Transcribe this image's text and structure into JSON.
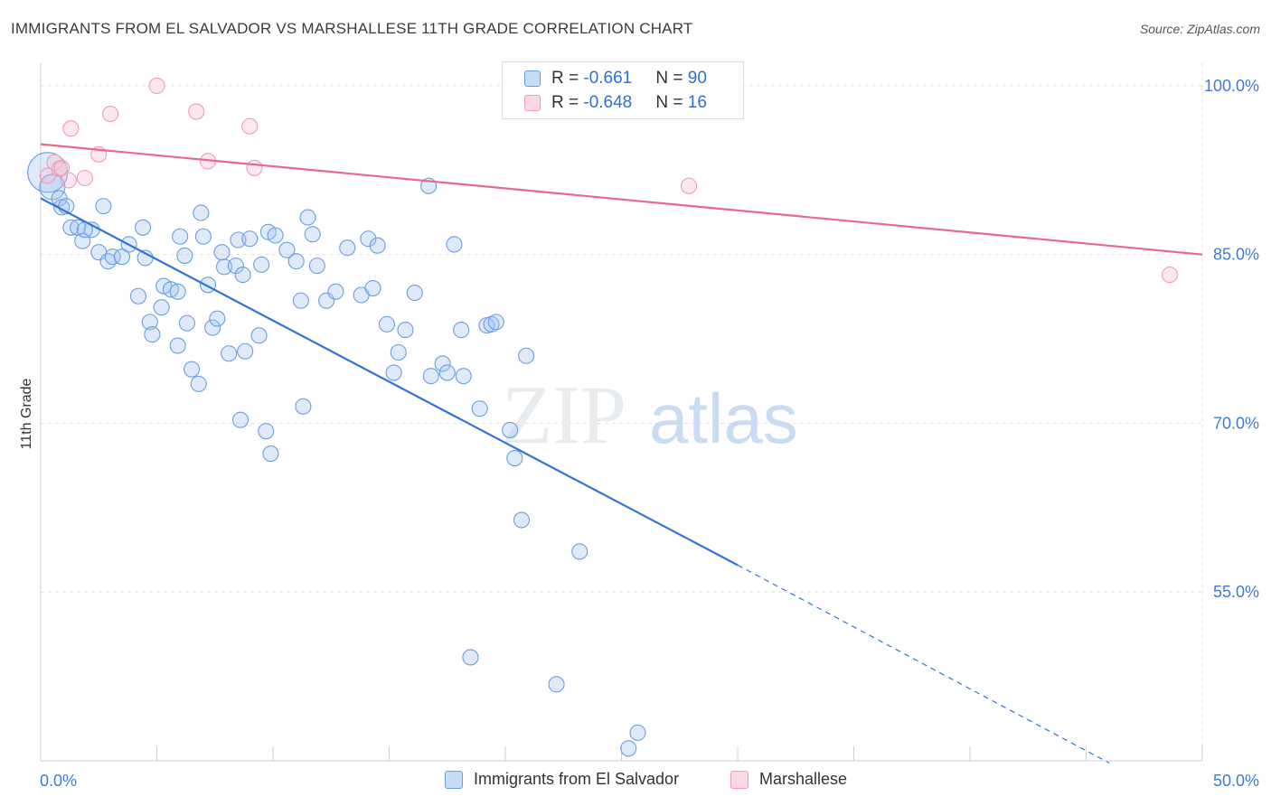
{
  "header": {
    "title": "IMMIGRANTS FROM EL SALVADOR VS MARSHALLESE 11TH GRADE CORRELATION CHART",
    "source": "Source: ZipAtlas.com"
  },
  "watermark": {
    "zip": "ZIP",
    "atlas": "atlas"
  },
  "stats_legend": [
    {
      "r_label": "R = ",
      "r_value": "-0.661",
      "n_label": "N = ",
      "n_value": "90",
      "color": "#6a9ee0"
    },
    {
      "r_label": "R = ",
      "r_value": "-0.648",
      "n_label": "N = ",
      "n_value": "16",
      "color": "#f29bb6"
    }
  ],
  "chart_data": {
    "type": "scatter",
    "ylabel": "11th Grade",
    "xlim": [
      0,
      50
    ],
    "ylim": [
      40,
      102
    ],
    "x_tick_labels": [
      "0.0%",
      "50.0%"
    ],
    "y_ticks": [
      100,
      85,
      70,
      55
    ],
    "y_tick_labels": [
      "100.0%",
      "85.0%",
      "70.0%",
      "55.0%"
    ],
    "grid": true,
    "legend_position": "bottom",
    "series": [
      {
        "name": "Immigrants from El Salvador",
        "color": "#6a9ee0",
        "fill": "rgba(160,195,240,0.35)",
        "line_color": "#2f74d6",
        "trend": {
          "x0": 0,
          "y0": 90.0,
          "x1": 30,
          "y1": 57.4,
          "dash_to_x": 46,
          "dash_to_y": 39.8
        },
        "points": [
          [
            0.3,
            92.3
          ],
          [
            0.5,
            91.0
          ],
          [
            0.8,
            90.0
          ],
          [
            0.9,
            89.2
          ],
          [
            1.1,
            89.3
          ],
          [
            1.3,
            87.4
          ],
          [
            1.6,
            87.4
          ],
          [
            1.8,
            86.2
          ],
          [
            2.2,
            87.2
          ],
          [
            2.7,
            89.3
          ],
          [
            1.9,
            87.2
          ],
          [
            2.5,
            85.2
          ],
          [
            2.9,
            84.4
          ],
          [
            3.1,
            84.8
          ],
          [
            3.5,
            84.8
          ],
          [
            3.8,
            85.9
          ],
          [
            4.2,
            81.3
          ],
          [
            4.4,
            87.4
          ],
          [
            4.5,
            84.7
          ],
          [
            4.7,
            79.0
          ],
          [
            4.8,
            77.9
          ],
          [
            5.2,
            80.3
          ],
          [
            5.3,
            82.2
          ],
          [
            5.6,
            81.9
          ],
          [
            5.9,
            81.7
          ],
          [
            5.9,
            76.9
          ],
          [
            6.0,
            86.6
          ],
          [
            6.2,
            84.9
          ],
          [
            6.3,
            78.9
          ],
          [
            6.5,
            74.8
          ],
          [
            6.8,
            73.5
          ],
          [
            6.9,
            88.7
          ],
          [
            7.0,
            86.6
          ],
          [
            7.2,
            82.3
          ],
          [
            7.4,
            78.5
          ],
          [
            7.6,
            79.3
          ],
          [
            7.8,
            85.2
          ],
          [
            7.9,
            83.9
          ],
          [
            8.1,
            76.2
          ],
          [
            8.4,
            84.0
          ],
          [
            8.5,
            86.3
          ],
          [
            8.6,
            70.3
          ],
          [
            8.7,
            83.2
          ],
          [
            8.8,
            76.4
          ],
          [
            9.0,
            86.4
          ],
          [
            9.4,
            77.8
          ],
          [
            9.5,
            84.1
          ],
          [
            9.7,
            69.3
          ],
          [
            9.8,
            87.0
          ],
          [
            9.9,
            67.3
          ],
          [
            10.1,
            86.7
          ],
          [
            10.6,
            85.4
          ],
          [
            11.0,
            84.4
          ],
          [
            11.2,
            80.9
          ],
          [
            11.3,
            71.5
          ],
          [
            11.5,
            88.3
          ],
          [
            11.7,
            86.8
          ],
          [
            11.9,
            84.0
          ],
          [
            12.3,
            80.9
          ],
          [
            12.7,
            81.7
          ],
          [
            13.2,
            85.6
          ],
          [
            13.8,
            81.4
          ],
          [
            14.1,
            86.4
          ],
          [
            14.3,
            82.0
          ],
          [
            14.5,
            85.8
          ],
          [
            14.9,
            78.8
          ],
          [
            15.2,
            74.5
          ],
          [
            15.4,
            76.3
          ],
          [
            15.7,
            78.3
          ],
          [
            16.1,
            81.6
          ],
          [
            16.7,
            91.1
          ],
          [
            16.8,
            74.2
          ],
          [
            17.3,
            75.3
          ],
          [
            17.5,
            74.5
          ],
          [
            17.8,
            85.9
          ],
          [
            18.1,
            78.3
          ],
          [
            18.2,
            74.2
          ],
          [
            18.5,
            49.2
          ],
          [
            18.9,
            71.3
          ],
          [
            19.2,
            78.7
          ],
          [
            19.4,
            78.8
          ],
          [
            19.6,
            79.0
          ],
          [
            20.2,
            69.4
          ],
          [
            20.4,
            66.9
          ],
          [
            20.7,
            61.4
          ],
          [
            20.9,
            76.0
          ],
          [
            23.2,
            58.6
          ],
          [
            22.2,
            46.8
          ],
          [
            25.7,
            42.5
          ],
          [
            25.3,
            41.1
          ]
        ]
      },
      {
        "name": "Marshallese",
        "color": "#f29bb6",
        "fill": "rgba(248,190,210,0.35)",
        "line_color": "#e86892",
        "trend": {
          "x0": 0,
          "y0": 94.8,
          "x1": 50,
          "y1": 85.0
        },
        "points": [
          [
            0.3,
            92.0
          ],
          [
            0.6,
            93.2
          ],
          [
            0.8,
            92.6
          ],
          [
            0.9,
            92.7
          ],
          [
            1.2,
            91.6
          ],
          [
            1.3,
            96.2
          ],
          [
            1.9,
            91.8
          ],
          [
            2.5,
            93.9
          ],
          [
            3.0,
            97.5
          ],
          [
            5.0,
            100.0
          ],
          [
            6.7,
            97.7
          ],
          [
            7.2,
            93.3
          ],
          [
            9.0,
            96.4
          ],
          [
            9.2,
            92.7
          ],
          [
            27.9,
            91.1
          ],
          [
            48.6,
            83.2
          ]
        ]
      }
    ]
  }
}
